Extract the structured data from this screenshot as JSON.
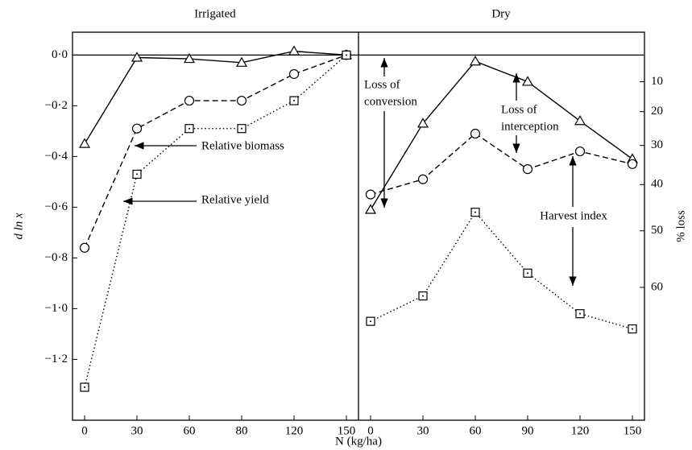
{
  "chart_data": [
    {
      "type": "line",
      "title": "Irrigated",
      "xlabel": "N (kg/ha)",
      "ylabel": "d ln x",
      "categories": [
        "0",
        "30",
        "60",
        "80",
        "120",
        "150"
      ],
      "ylim": [
        -1.44,
        0.09
      ],
      "yticks": [
        {
          "value": 0,
          "label": "0·0"
        },
        {
          "value": -0.2,
          "label": "−0·2"
        },
        {
          "value": -0.4,
          "label": "−0·4"
        },
        {
          "value": -0.6,
          "label": "−0·6"
        },
        {
          "value": -0.8,
          "label": "−0·8"
        },
        {
          "value": -1.0,
          "label": "−1·0"
        },
        {
          "value": -1.2,
          "label": "−1·2"
        }
      ],
      "hline": 0,
      "series": [
        {
          "color": "#000000",
          "dash": "solid",
          "marker": "triangle",
          "values": [
            -0.35,
            -0.01,
            -0.015,
            -0.03,
            0.015,
            0
          ]
        },
        {
          "color": "#000000",
          "dash": "dashed",
          "marker": "circle",
          "values": [
            -0.76,
            -0.29,
            -0.18,
            -0.18,
            -0.075,
            0
          ]
        },
        {
          "color": "#000000",
          "dash": "dotted",
          "marker": "square",
          "values": [
            -1.31,
            -0.47,
            -0.29,
            -0.29,
            -0.18,
            0
          ]
        }
      ],
      "annotations": [
        "Relative biomass",
        "Relative yield"
      ]
    },
    {
      "type": "line",
      "title": "Dry",
      "y2label": "% loss",
      "categories": [
        "0",
        "30",
        "60",
        "90",
        "120",
        "150"
      ],
      "ylim": [
        -1.44,
        0.09
      ],
      "y2scale": "loss",
      "y2ticks": [
        10,
        20,
        30,
        40,
        50,
        60
      ],
      "hline": 0,
      "series": [
        {
          "color": "#000000",
          "dash": "solid",
          "marker": "triangle",
          "values": [
            -0.61,
            -0.27,
            -0.025,
            -0.105,
            -0.26,
            -0.41
          ]
        },
        {
          "color": "#000000",
          "dash": "dashed",
          "marker": "circle",
          "values": [
            -0.55,
            -0.49,
            -0.31,
            -0.45,
            -0.38,
            -0.43
          ]
        },
        {
          "color": "#000000",
          "dash": "dotted",
          "marker": "square",
          "values": [
            -1.05,
            -0.95,
            -0.62,
            -0.86,
            -1.02,
            -1.08
          ]
        }
      ],
      "annotations": [
        [
          "Loss of",
          "conversion"
        ],
        [
          "Loss of",
          "interception"
        ],
        "Harvest index"
      ]
    }
  ]
}
